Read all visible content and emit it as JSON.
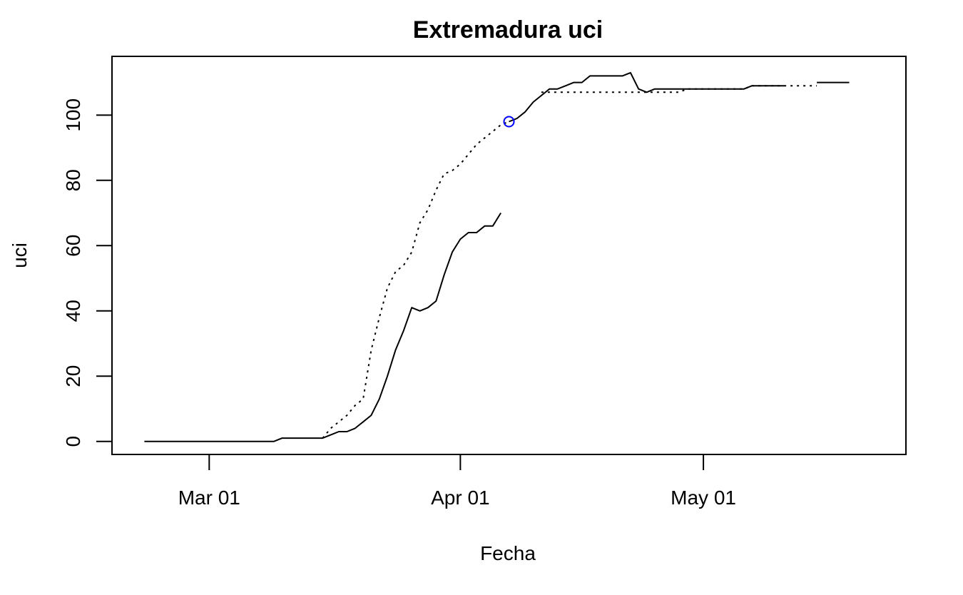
{
  "chart_data": {
    "type": "line",
    "title": "Extremadura uci",
    "xlabel": "Fecha",
    "ylabel": "uci",
    "xlim": [
      "2020-02-18",
      "2020-05-26"
    ],
    "ylim": [
      -4,
      118
    ],
    "x_ticks": [
      {
        "date": "2020-03-01",
        "label": "Mar 01"
      },
      {
        "date": "2020-04-01",
        "label": "Apr 01"
      },
      {
        "date": "2020-05-01",
        "label": "May 01"
      }
    ],
    "y_ticks": [
      0,
      20,
      40,
      60,
      80,
      100
    ],
    "grid": false,
    "series": [
      {
        "style": "dotted",
        "color": "#000000",
        "points": [
          [
            "2020-03-15",
            1
          ],
          [
            "2020-03-16",
            4
          ],
          [
            "2020-03-17",
            6
          ],
          [
            "2020-03-18",
            8
          ],
          [
            "2020-03-19",
            11
          ],
          [
            "2020-03-20",
            13
          ],
          [
            "2020-03-21",
            28
          ],
          [
            "2020-03-22",
            38
          ],
          [
            "2020-03-23",
            47
          ],
          [
            "2020-03-24",
            52
          ],
          [
            "2020-03-25",
            54
          ],
          [
            "2020-03-26",
            58
          ],
          [
            "2020-03-27",
            67
          ],
          [
            "2020-03-28",
            71
          ],
          [
            "2020-03-29",
            77
          ],
          [
            "2020-03-30",
            82
          ],
          [
            "2020-03-31",
            83
          ],
          [
            "2020-04-01",
            85
          ],
          [
            "2020-04-02",
            88
          ],
          [
            "2020-04-03",
            91
          ],
          [
            "2020-04-04",
            93
          ],
          [
            "2020-04-05",
            95
          ],
          [
            "2020-04-06",
            97
          ],
          [
            "2020-04-07",
            98
          ]
        ]
      },
      {
        "style": "dotted",
        "color": "#000000",
        "points": [
          [
            "2020-04-11",
            107
          ],
          [
            "2020-04-17",
            107
          ],
          [
            "2020-04-24",
            107
          ],
          [
            "2020-04-28",
            107
          ],
          [
            "2020-04-29",
            108
          ],
          [
            "2020-05-06",
            108
          ],
          [
            "2020-05-07",
            109
          ],
          [
            "2020-05-14",
            109
          ],
          [
            "2020-05-15",
            109
          ]
        ]
      },
      {
        "style": "solid",
        "color": "#000000",
        "points": [
          [
            "2020-02-22",
            0
          ],
          [
            "2020-03-09",
            0
          ],
          [
            "2020-03-10",
            1
          ],
          [
            "2020-03-14",
            1
          ],
          [
            "2020-03-15",
            1
          ],
          [
            "2020-03-16",
            2
          ],
          [
            "2020-03-17",
            3
          ],
          [
            "2020-03-18",
            3
          ],
          [
            "2020-03-19",
            4
          ],
          [
            "2020-03-20",
            6
          ],
          [
            "2020-03-21",
            8
          ],
          [
            "2020-03-22",
            13
          ],
          [
            "2020-03-23",
            20
          ],
          [
            "2020-03-24",
            28
          ],
          [
            "2020-03-25",
            34
          ],
          [
            "2020-03-26",
            41
          ],
          [
            "2020-03-27",
            40
          ],
          [
            "2020-03-28",
            41
          ],
          [
            "2020-03-29",
            43
          ],
          [
            "2020-03-30",
            51
          ],
          [
            "2020-03-31",
            58
          ],
          [
            "2020-04-01",
            62
          ],
          [
            "2020-04-02",
            64
          ],
          [
            "2020-04-03",
            64
          ],
          [
            "2020-04-04",
            66
          ],
          [
            "2020-04-05",
            66
          ],
          [
            "2020-04-06",
            70
          ]
        ]
      },
      {
        "style": "solid",
        "color": "#000000",
        "points": [
          [
            "2020-04-07",
            98
          ],
          [
            "2020-04-08",
            99
          ],
          [
            "2020-04-09",
            101
          ],
          [
            "2020-04-10",
            104
          ],
          [
            "2020-04-11",
            106
          ],
          [
            "2020-04-12",
            108
          ],
          [
            "2020-04-13",
            108
          ],
          [
            "2020-04-14",
            109
          ],
          [
            "2020-04-15",
            110
          ],
          [
            "2020-04-16",
            110
          ],
          [
            "2020-04-17",
            112
          ],
          [
            "2020-04-18",
            112
          ],
          [
            "2020-04-19",
            112
          ],
          [
            "2020-04-20",
            112
          ],
          [
            "2020-04-21",
            112
          ],
          [
            "2020-04-22",
            113
          ],
          [
            "2020-04-23",
            108
          ],
          [
            "2020-04-24",
            107
          ],
          [
            "2020-04-25",
            108
          ],
          [
            "2020-04-26",
            108
          ],
          [
            "2020-04-27",
            108
          ],
          [
            "2020-04-28",
            108
          ],
          [
            "2020-04-29",
            108
          ],
          [
            "2020-04-30",
            108
          ],
          [
            "2020-05-01",
            108
          ],
          [
            "2020-05-02",
            108
          ],
          [
            "2020-05-03",
            108
          ],
          [
            "2020-05-04",
            108
          ],
          [
            "2020-05-05",
            108
          ],
          [
            "2020-05-06",
            108
          ],
          [
            "2020-05-07",
            109
          ],
          [
            "2020-05-08",
            109
          ],
          [
            "2020-05-09",
            109
          ],
          [
            "2020-05-10",
            109
          ],
          [
            "2020-05-11",
            109
          ]
        ]
      },
      {
        "style": "solid",
        "color": "#000000",
        "points": [
          [
            "2020-05-15",
            110
          ],
          [
            "2020-05-16",
            110
          ],
          [
            "2020-05-17",
            110
          ],
          [
            "2020-05-18",
            110
          ],
          [
            "2020-05-19",
            110
          ]
        ]
      }
    ],
    "markers": [
      {
        "date": "2020-04-07",
        "value": 98,
        "shape": "circle",
        "color": "#0000ff"
      }
    ]
  }
}
